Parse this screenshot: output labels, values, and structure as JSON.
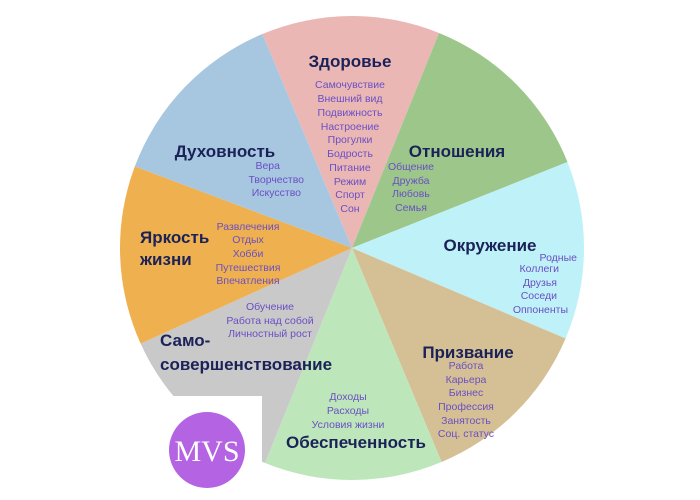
{
  "sectors": [
    {
      "title": "Здоровье",
      "color": "#eab7b5",
      "items": [
        "Самочувствие",
        "Внешний вид",
        "Подвижность",
        "Настроение",
        "Прогулки",
        "Бодрость",
        "Питание",
        "Режим",
        "Спорт",
        "Сон"
      ]
    },
    {
      "title": "Отношения",
      "color": "#9dc78a",
      "items": [
        "Общение",
        "Дружба",
        "Любовь",
        "Семья"
      ]
    },
    {
      "title": "Окружение",
      "color": "#bff1f8",
      "items": [
        "Родные",
        "Коллеги",
        "Друзья",
        "Соседи",
        "Оппоненты"
      ]
    },
    {
      "title": "Призвание",
      "color": "#d5c095",
      "items": [
        "Работа",
        "Карьера",
        "Бизнес",
        "Профессия",
        "Занятость",
        "Соц. статус"
      ]
    },
    {
      "title": "Обеспеченность",
      "color": "#bde7bb",
      "items": [
        "Доходы",
        "Расходы",
        "Условия жизни"
      ]
    },
    {
      "title_line1": "Само-",
      "title_line2": "совершенствование",
      "color": "#c9c9c9",
      "items": [
        "Обучение",
        "Работа над собой",
        "Личностный рост"
      ]
    },
    {
      "title_line1": "Яркость",
      "title_line2": "жизни",
      "color": "#efb04f",
      "items": [
        "Развлечения",
        "Отдых",
        "Хобби",
        "Путешествия",
        "Впечатления"
      ]
    },
    {
      "title": "Духовность",
      "color": "#a7c7e1",
      "items": [
        "Вера",
        "Творчество",
        "Искусство"
      ]
    }
  ],
  "logo": {
    "text": "MVS",
    "color": "#b463e3"
  }
}
